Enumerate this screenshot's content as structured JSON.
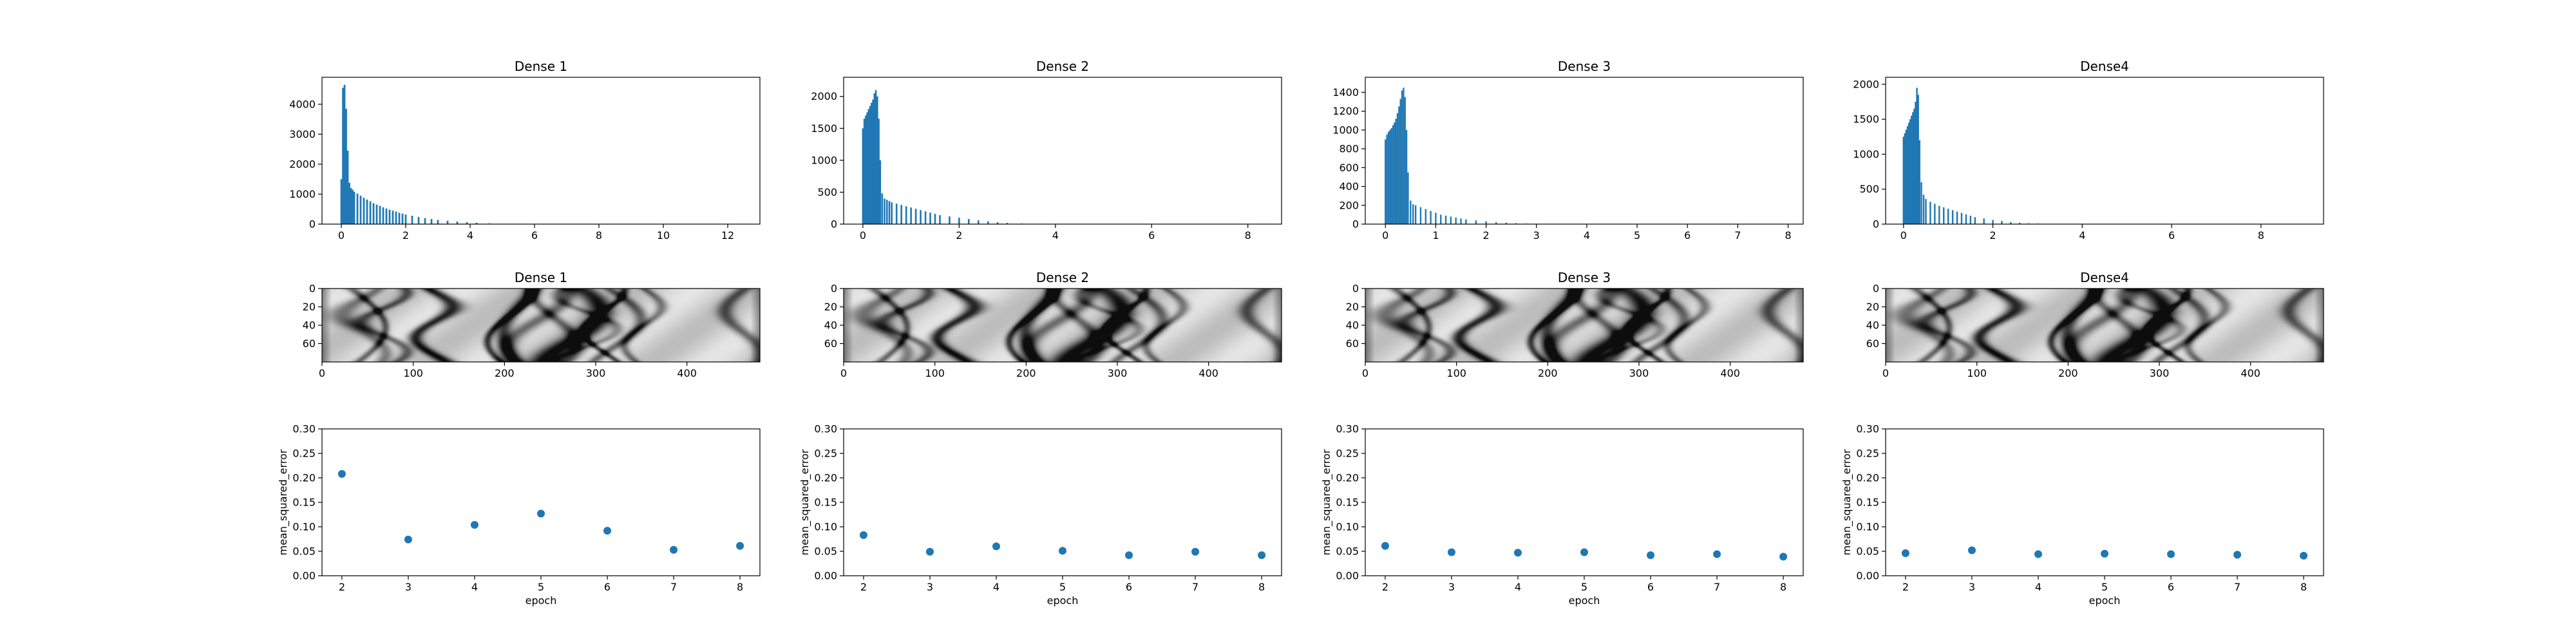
{
  "colors": {
    "mark": "#1f77b4",
    "axis": "#000000",
    "background": "#ffffff"
  },
  "chart_data": [
    {
      "type": "bar",
      "row": 0,
      "col": 0,
      "title": "Dense 1",
      "xlim": [
        -0.6,
        13.0
      ],
      "ylim": [
        0,
        4900
      ],
      "xticks": [
        0,
        2,
        4,
        6,
        8,
        10,
        12
      ],
      "yticks": [
        0,
        1000,
        2000,
        3000,
        4000
      ],
      "bar_width": 0.055,
      "x": [
        0.0,
        0.05,
        0.1,
        0.15,
        0.2,
        0.25,
        0.3,
        0.35,
        0.4,
        0.5,
        0.6,
        0.7,
        0.8,
        0.9,
        1.0,
        1.1,
        1.2,
        1.3,
        1.4,
        1.5,
        1.6,
        1.7,
        1.8,
        1.9,
        2.0,
        2.2,
        2.4,
        2.6,
        2.8,
        3.0,
        3.3,
        3.6,
        3.9,
        4.2,
        4.6,
        5.0
      ],
      "values": [
        1500,
        4550,
        4650,
        3850,
        2450,
        1380,
        1200,
        1150,
        1080,
        1020,
        950,
        880,
        820,
        760,
        700,
        650,
        610,
        560,
        520,
        480,
        450,
        420,
        380,
        350,
        320,
        280,
        240,
        200,
        170,
        140,
        110,
        85,
        65,
        45,
        25,
        10
      ]
    },
    {
      "type": "bar",
      "row": 0,
      "col": 1,
      "title": "Dense 2",
      "xlim": [
        -0.4,
        8.7
      ],
      "ylim": [
        0,
        2300
      ],
      "xticks": [
        0,
        2,
        4,
        6,
        8
      ],
      "yticks": [
        0,
        500,
        1000,
        1500,
        2000
      ],
      "bar_width": 0.035,
      "x": [
        0.0,
        0.03,
        0.06,
        0.09,
        0.12,
        0.15,
        0.18,
        0.21,
        0.24,
        0.27,
        0.3,
        0.33,
        0.36,
        0.4,
        0.45,
        0.5,
        0.55,
        0.6,
        0.7,
        0.8,
        0.9,
        1.0,
        1.1,
        1.2,
        1.3,
        1.4,
        1.5,
        1.6,
        1.8,
        2.0,
        2.2,
        2.4,
        2.6,
        2.8,
        3.0,
        3.3,
        3.6
      ],
      "values": [
        1500,
        1650,
        1700,
        1750,
        1800,
        1850,
        1900,
        1950,
        2050,
        2100,
        2000,
        1650,
        1000,
        480,
        400,
        380,
        360,
        340,
        320,
        300,
        280,
        260,
        240,
        220,
        200,
        180,
        160,
        140,
        120,
        100,
        80,
        60,
        45,
        30,
        20,
        10,
        5
      ]
    },
    {
      "type": "bar",
      "row": 0,
      "col": 2,
      "title": "Dense 3",
      "xlim": [
        -0.4,
        8.3
      ],
      "ylim": [
        0,
        1560
      ],
      "xticks": [
        0,
        1,
        2,
        3,
        4,
        5,
        6,
        7,
        8
      ],
      "yticks": [
        0,
        200,
        400,
        600,
        800,
        1000,
        1200,
        1400
      ],
      "bar_width": 0.03,
      "x": [
        0.0,
        0.03,
        0.06,
        0.09,
        0.12,
        0.15,
        0.18,
        0.21,
        0.24,
        0.27,
        0.3,
        0.33,
        0.36,
        0.39,
        0.42,
        0.45,
        0.5,
        0.55,
        0.6,
        0.7,
        0.8,
        0.9,
        1.0,
        1.1,
        1.2,
        1.3,
        1.4,
        1.5,
        1.6,
        1.8,
        2.0,
        2.2,
        2.4,
        2.6,
        2.8,
        3.0
      ],
      "values": [
        900,
        950,
        980,
        1000,
        1020,
        1050,
        1080,
        1120,
        1180,
        1250,
        1330,
        1420,
        1450,
        1350,
        1000,
        550,
        250,
        210,
        200,
        180,
        160,
        140,
        120,
        100,
        90,
        80,
        70,
        60,
        50,
        40,
        30,
        20,
        15,
        10,
        6,
        3
      ]
    },
    {
      "type": "bar",
      "row": 0,
      "col": 3,
      "title": "Dense4",
      "xlim": [
        -0.4,
        9.4
      ],
      "ylim": [
        0,
        2100
      ],
      "xticks": [
        0,
        2,
        4,
        6,
        8
      ],
      "yticks": [
        0,
        500,
        1000,
        1500,
        2000
      ],
      "bar_width": 0.035,
      "x": [
        0.0,
        0.03,
        0.06,
        0.09,
        0.12,
        0.15,
        0.18,
        0.21,
        0.24,
        0.27,
        0.3,
        0.33,
        0.36,
        0.4,
        0.45,
        0.5,
        0.6,
        0.7,
        0.8,
        0.9,
        1.0,
        1.1,
        1.2,
        1.3,
        1.4,
        1.5,
        1.6,
        1.8,
        2.0,
        2.2,
        2.4,
        2.6,
        2.8,
        3.0,
        3.3
      ],
      "values": [
        1250,
        1300,
        1350,
        1400,
        1450,
        1500,
        1550,
        1600,
        1650,
        1750,
        1950,
        1850,
        1200,
        600,
        420,
        360,
        320,
        290,
        260,
        240,
        220,
        200,
        180,
        160,
        140,
        120,
        100,
        80,
        60,
        45,
        30,
        20,
        12,
        8,
        4
      ]
    },
    {
      "type": "heatmap",
      "row": 1,
      "col": 0,
      "title": "Dense 1",
      "xlim": [
        0,
        480
      ],
      "ylim": [
        80,
        0
      ],
      "xticks": [
        0,
        100,
        200,
        300,
        400
      ],
      "yticks": [
        0,
        20,
        40,
        60
      ]
    },
    {
      "type": "heatmap",
      "row": 1,
      "col": 1,
      "title": "Dense 2",
      "xlim": [
        0,
        480
      ],
      "ylim": [
        80,
        0
      ],
      "xticks": [
        0,
        100,
        200,
        300,
        400
      ],
      "yticks": [
        0,
        20,
        40,
        60
      ]
    },
    {
      "type": "heatmap",
      "row": 1,
      "col": 2,
      "title": "Dense 3",
      "xlim": [
        0,
        480
      ],
      "ylim": [
        80,
        0
      ],
      "xticks": [
        0,
        100,
        200,
        300,
        400
      ],
      "yticks": [
        0,
        20,
        40,
        60
      ]
    },
    {
      "type": "heatmap",
      "row": 1,
      "col": 3,
      "title": "Dense4",
      "xlim": [
        0,
        480
      ],
      "ylim": [
        80,
        0
      ],
      "xticks": [
        0,
        100,
        200,
        300,
        400
      ],
      "yticks": [
        0,
        20,
        40,
        60
      ]
    },
    {
      "type": "scatter",
      "row": 2,
      "col": 0,
      "title": "",
      "xlabel": "epoch",
      "ylabel": "mean_squared_error",
      "xlim": [
        1.7,
        8.3
      ],
      "ylim": [
        0,
        0.3
      ],
      "xticks": [
        2,
        3,
        4,
        5,
        6,
        7,
        8
      ],
      "yticks": [
        0.0,
        0.05,
        0.1,
        0.15,
        0.2,
        0.25,
        0.3
      ],
      "x": [
        2,
        3,
        4,
        5,
        6,
        7,
        8
      ],
      "values": [
        0.208,
        0.074,
        0.104,
        0.127,
        0.092,
        0.053,
        0.061
      ]
    },
    {
      "type": "scatter",
      "row": 2,
      "col": 1,
      "title": "",
      "xlabel": "epoch",
      "ylabel": "mean_squared_error",
      "xlim": [
        1.7,
        8.3
      ],
      "ylim": [
        0,
        0.3
      ],
      "xticks": [
        2,
        3,
        4,
        5,
        6,
        7,
        8
      ],
      "yticks": [
        0.0,
        0.05,
        0.1,
        0.15,
        0.2,
        0.25,
        0.3
      ],
      "x": [
        2,
        3,
        4,
        5,
        6,
        7,
        8
      ],
      "values": [
        0.083,
        0.049,
        0.06,
        0.051,
        0.042,
        0.049,
        0.042
      ]
    },
    {
      "type": "scatter",
      "row": 2,
      "col": 2,
      "title": "",
      "xlabel": "epoch",
      "ylabel": "mean_squared_error",
      "xlim": [
        1.7,
        8.3
      ],
      "ylim": [
        0,
        0.3
      ],
      "xticks": [
        2,
        3,
        4,
        5,
        6,
        7,
        8
      ],
      "yticks": [
        0.0,
        0.05,
        0.1,
        0.15,
        0.2,
        0.25,
        0.3
      ],
      "x": [
        2,
        3,
        4,
        5,
        6,
        7,
        8
      ],
      "values": [
        0.061,
        0.048,
        0.047,
        0.048,
        0.042,
        0.044,
        0.039
      ]
    },
    {
      "type": "scatter",
      "row": 2,
      "col": 3,
      "title": "",
      "xlabel": "epoch",
      "ylabel": "mean_squared_error",
      "xlim": [
        1.7,
        8.3
      ],
      "ylim": [
        0,
        0.3
      ],
      "xticks": [
        2,
        3,
        4,
        5,
        6,
        7,
        8
      ],
      "yticks": [
        0.0,
        0.05,
        0.1,
        0.15,
        0.2,
        0.25,
        0.3
      ],
      "x": [
        2,
        3,
        4,
        5,
        6,
        7,
        8
      ],
      "values": [
        0.046,
        0.052,
        0.044,
        0.045,
        0.044,
        0.043,
        0.041
      ]
    }
  ]
}
